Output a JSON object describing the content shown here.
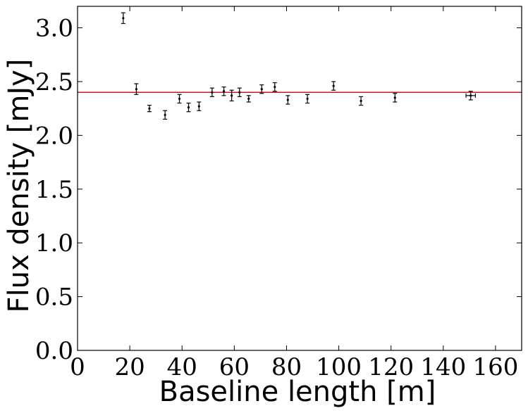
{
  "chart_data": {
    "type": "scatter",
    "title": "",
    "xlabel": "Baseline length [m]",
    "ylabel": "Flux density [mJy]",
    "xlim": [
      0,
      170
    ],
    "ylim": [
      0.0,
      3.2
    ],
    "xticks": [
      0,
      20,
      40,
      60,
      80,
      100,
      120,
      140,
      160
    ],
    "xtick_labels": [
      "0",
      "20",
      "40",
      "60",
      "80",
      "100",
      "120",
      "140",
      "160"
    ],
    "yticks": [
      0.0,
      0.5,
      1.0,
      1.5,
      2.0,
      2.5,
      3.0
    ],
    "ytick_labels": [
      "0.0",
      "0.5",
      "1.0",
      "1.5",
      "2.0",
      "2.5",
      "3.0"
    ],
    "grid": false,
    "legend": "none",
    "series": [
      {
        "marker_color": "#000000",
        "points": [
          {
            "x": 17.5,
            "y": 3.09,
            "yerr": 0.05,
            "xerr": 0
          },
          {
            "x": 22.5,
            "y": 2.43,
            "yerr": 0.05,
            "xerr": 0
          },
          {
            "x": 27.5,
            "y": 2.25,
            "yerr": 0.03,
            "xerr": 0
          },
          {
            "x": 33.5,
            "y": 2.19,
            "yerr": 0.04,
            "xerr": 0
          },
          {
            "x": 39.0,
            "y": 2.34,
            "yerr": 0.04,
            "xerr": 0
          },
          {
            "x": 42.5,
            "y": 2.26,
            "yerr": 0.04,
            "xerr": 0
          },
          {
            "x": 46.5,
            "y": 2.27,
            "yerr": 0.04,
            "xerr": 0
          },
          {
            "x": 51.5,
            "y": 2.4,
            "yerr": 0.04,
            "xerr": 0
          },
          {
            "x": 56.0,
            "y": 2.41,
            "yerr": 0.04,
            "xerr": 0
          },
          {
            "x": 59.0,
            "y": 2.37,
            "yerr": 0.05,
            "xerr": 0
          },
          {
            "x": 62.0,
            "y": 2.4,
            "yerr": 0.04,
            "xerr": 0
          },
          {
            "x": 65.5,
            "y": 2.34,
            "yerr": 0.03,
            "xerr": 0
          },
          {
            "x": 70.5,
            "y": 2.43,
            "yerr": 0.04,
            "xerr": 0
          },
          {
            "x": 75.5,
            "y": 2.45,
            "yerr": 0.04,
            "xerr": 0
          },
          {
            "x": 80.5,
            "y": 2.33,
            "yerr": 0.04,
            "xerr": 0
          },
          {
            "x": 88.0,
            "y": 2.34,
            "yerr": 0.04,
            "xerr": 0
          },
          {
            "x": 98.0,
            "y": 2.46,
            "yerr": 0.04,
            "xerr": 0
          },
          {
            "x": 108.5,
            "y": 2.32,
            "yerr": 0.04,
            "xerr": 0
          },
          {
            "x": 121.5,
            "y": 2.35,
            "yerr": 0.04,
            "xerr": 0
          },
          {
            "x": 150.5,
            "y": 2.37,
            "yerr": 0.04,
            "xerr": 1.8
          }
        ]
      }
    ],
    "reference_line": {
      "y": 2.4,
      "color": "#ff0000"
    }
  }
}
